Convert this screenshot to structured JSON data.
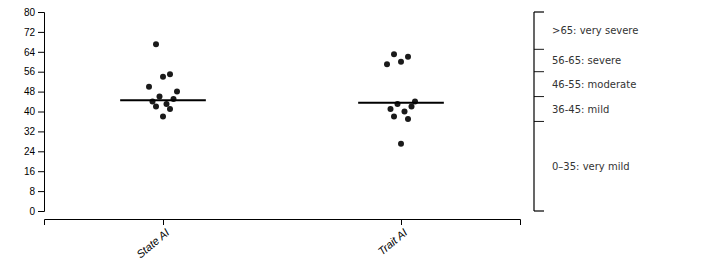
{
  "chart_data": {
    "type": "strip",
    "categories": [
      "State AI",
      "Trait AI"
    ],
    "values": [
      [
        67,
        55,
        54,
        50,
        48,
        46,
        45,
        44,
        43,
        42,
        41,
        38
      ],
      [
        63,
        62,
        60,
        59,
        44,
        43,
        42,
        41,
        40,
        38,
        37,
        27
      ]
    ],
    "medians": [
      44.5,
      43.5
    ],
    "color": "#1a1a1a",
    "ylim": [
      0,
      80
    ],
    "yticks": [
      0,
      8,
      16,
      24,
      32,
      40,
      48,
      56,
      64,
      72,
      80
    ],
    "bracket_ticks": [
      65,
      56,
      46,
      36
    ],
    "bracket_labels": [
      ">65: very severe",
      "56-65: severe",
      "46-55: moderate",
      "36-45: mild",
      "0–35: very mild"
    ]
  }
}
